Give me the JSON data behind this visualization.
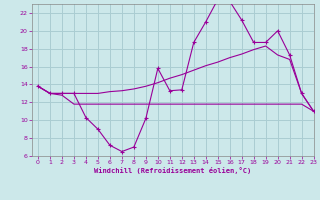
{
  "background_color": "#cce8ea",
  "grid_color": "#aacdd2",
  "line_color": "#990099",
  "xlim": [
    -0.5,
    23
  ],
  "ylim": [
    6,
    23
  ],
  "yticks": [
    6,
    8,
    10,
    12,
    14,
    16,
    18,
    20,
    22
  ],
  "xticks": [
    0,
    1,
    2,
    3,
    4,
    5,
    6,
    7,
    8,
    9,
    10,
    11,
    12,
    13,
    14,
    15,
    16,
    17,
    18,
    19,
    20,
    21,
    22,
    23
  ],
  "xlabel": "Windchill (Refroidissement éolien,°C)",
  "series1_x": [
    0,
    1,
    2,
    3,
    4,
    5,
    6,
    7,
    8,
    9,
    10,
    11,
    12,
    13,
    14,
    15,
    16,
    17,
    18,
    19,
    20,
    21,
    22,
    23
  ],
  "series1_y": [
    13.8,
    13.0,
    13.0,
    13.0,
    10.3,
    9.0,
    7.2,
    6.5,
    7.0,
    10.2,
    15.8,
    13.3,
    13.4,
    18.7,
    21.0,
    23.5,
    23.3,
    21.2,
    18.7,
    18.7,
    20.0,
    17.3,
    13.0,
    11.0
  ],
  "series2_x": [
    0,
    1,
    2,
    3,
    4,
    5,
    6,
    7,
    8,
    9,
    10,
    11,
    12,
    13,
    14,
    15,
    16,
    17,
    18,
    19,
    20,
    21,
    22,
    23
  ],
  "series2_y": [
    13.8,
    13.0,
    12.8,
    11.8,
    11.8,
    11.8,
    11.8,
    11.8,
    11.8,
    11.8,
    11.8,
    11.8,
    11.8,
    11.8,
    11.8,
    11.8,
    11.8,
    11.8,
    11.8,
    11.8,
    11.8,
    11.8,
    11.8,
    11.0
  ],
  "series3_x": [
    0,
    1,
    2,
    3,
    4,
    5,
    6,
    7,
    8,
    9,
    10,
    11,
    12,
    13,
    14,
    15,
    16,
    17,
    18,
    19,
    20,
    21,
    22,
    23
  ],
  "series3_y": [
    13.8,
    13.0,
    13.0,
    13.0,
    13.0,
    13.0,
    13.2,
    13.3,
    13.5,
    13.8,
    14.2,
    14.7,
    15.1,
    15.6,
    16.1,
    16.5,
    17.0,
    17.4,
    17.9,
    18.3,
    17.3,
    16.8,
    13.0,
    11.0
  ]
}
